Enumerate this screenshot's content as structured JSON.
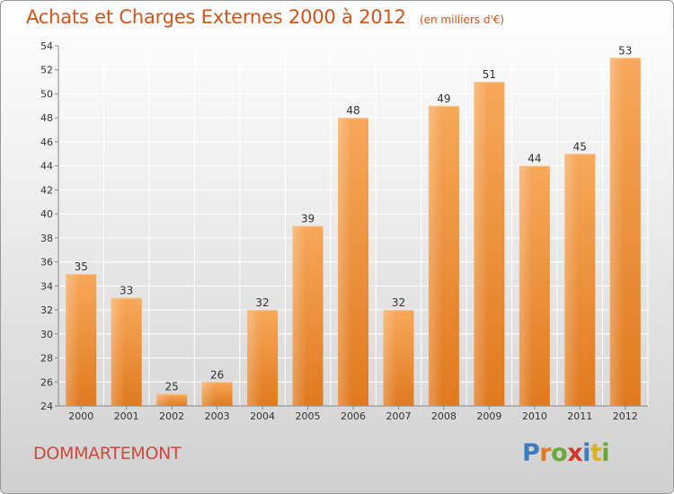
{
  "header": {
    "title": "Achats et Charges Externes 2000 à 2012",
    "unit_note": "(en milliers d'€)"
  },
  "footer": {
    "town": "DOMMARTEMONT",
    "brand_letters": [
      {
        "ch": "P",
        "color": "#3c7dc0"
      },
      {
        "ch": "r",
        "color": "#e07a1f"
      },
      {
        "ch": "o",
        "color": "#6aa83b"
      },
      {
        "ch": "x",
        "color": "#d23a2a"
      },
      {
        "ch": "i",
        "color": "#3c7dc0"
      },
      {
        "ch": "t",
        "color": "#e0b020"
      },
      {
        "ch": "i",
        "color": "#6aa83b"
      }
    ]
  },
  "chart_data": {
    "type": "bar",
    "categories": [
      "2000",
      "2001",
      "2002",
      "2003",
      "2004",
      "2005",
      "2006",
      "2007",
      "2008",
      "2009",
      "2010",
      "2011",
      "2012"
    ],
    "values": [
      35,
      33,
      25,
      26,
      32,
      39,
      48,
      32,
      49,
      51,
      44,
      45,
      53
    ],
    "title": "Achats et Charges Externes 2000 à 2012",
    "ylim": [
      24,
      54
    ],
    "yticks": [
      24,
      26,
      28,
      30,
      32,
      34,
      36,
      38,
      40,
      42,
      44,
      46,
      48,
      50,
      52,
      54
    ],
    "grid": true,
    "bar_color": "#f0903a",
    "data_labels": true
  }
}
